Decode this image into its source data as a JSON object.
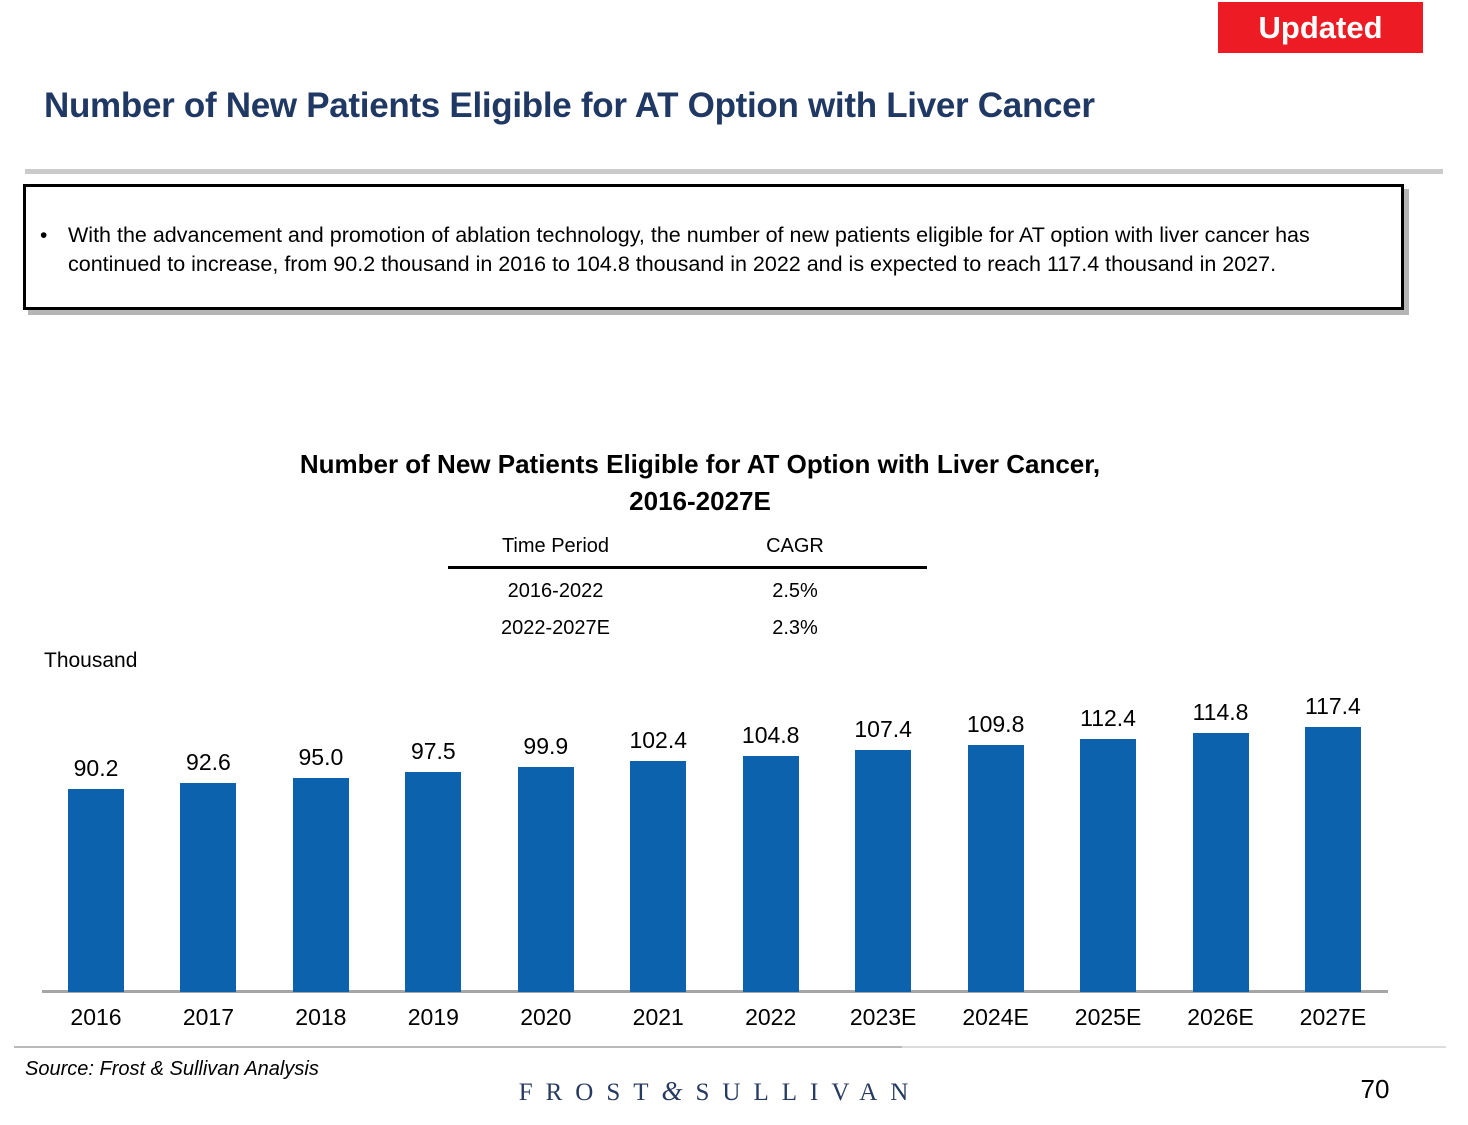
{
  "badge": {
    "label": "Updated",
    "bg_color": "#ED1C24"
  },
  "header": {
    "title": "Number of New Patients Eligible for AT Option with Liver Cancer"
  },
  "callout": {
    "bullet": "•",
    "text": "With the advancement and promotion of ablation technology, the number of new patients eligible for AT option with liver cancer has continued to increase, from 90.2 thousand in 2016 to 104.8 thousand in 2022 and is expected to reach 117.4 thousand in 2027."
  },
  "cagr_table": {
    "col_period": "Time Period",
    "col_cagr": "CAGR",
    "rows": [
      {
        "period": "2016-2022",
        "cagr": "2.5%"
      },
      {
        "period": "2022-2027E",
        "cagr": "2.3%"
      }
    ]
  },
  "chart_data": {
    "type": "bar",
    "title": "Number of New Patients Eligible for AT Option with Liver Cancer, 2016-2027E",
    "title_line1": "Number of New Patients Eligible for AT Option with Liver Cancer,",
    "title_line2": "2016-2027E",
    "unit_label": "Thousand",
    "categories": [
      "2016",
      "2017",
      "2018",
      "2019",
      "2020",
      "2021",
      "2022",
      "2023E",
      "2024E",
      "2025E",
      "2026E",
      "2027E"
    ],
    "values": [
      90.2,
      92.6,
      95.0,
      97.5,
      99.9,
      102.4,
      104.8,
      107.4,
      109.8,
      112.4,
      114.8,
      117.4
    ],
    "bar_color": "#0D62AE",
    "value_label_decimals": 1,
    "ylim": [
      0,
      130
    ],
    "grid": false,
    "legend": "none",
    "axis_color": "#A6A6A6"
  },
  "footer": {
    "source": "Source: Frost & Sullivan Analysis",
    "logo_left": "FROST",
    "logo_amp": "&",
    "logo_right": "SULLIVAN",
    "page_number": "70"
  }
}
